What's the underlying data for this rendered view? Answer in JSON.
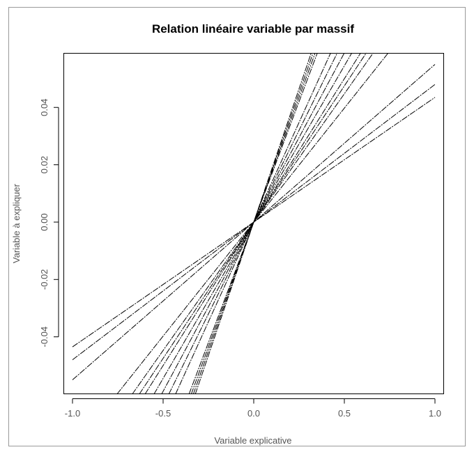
{
  "chart_data": {
    "type": "line",
    "title": "Relation linéaire variable par massif",
    "xlabel": "Variable explicative",
    "ylabel": "Variable à expliquer",
    "xlim": [
      -1.05,
      1.05
    ],
    "ylim": [
      -0.06,
      0.059
    ],
    "xticks": [
      -1.0,
      -0.5,
      0.0,
      0.5,
      1.0
    ],
    "xtick_labels": [
      "-1.0",
      "-0.5",
      "0.0",
      "0.5",
      "1.0"
    ],
    "yticks": [
      -0.04,
      -0.02,
      0.0,
      0.02,
      0.04
    ],
    "ytick_labels": [
      "-0.04",
      "-0.02",
      "0.00",
      "0.02",
      "0.04"
    ],
    "grid": false,
    "legend": false,
    "line_color": "#000000",
    "series": [
      {
        "intercept": 0,
        "slope": 0.0435
      },
      {
        "intercept": 0,
        "slope": 0.048
      },
      {
        "intercept": 0,
        "slope": 0.055
      },
      {
        "intercept": 0,
        "slope": 0.0795
      },
      {
        "intercept": 0,
        "slope": 0.0895
      },
      {
        "intercept": 0,
        "slope": 0.095
      },
      {
        "intercept": 0,
        "slope": 0.1
      },
      {
        "intercept": 0,
        "slope": 0.109
      },
      {
        "intercept": 0,
        "slope": 0.118
      },
      {
        "intercept": 0,
        "slope": 0.128
      },
      {
        "intercept": 0,
        "slope": 0.139
      },
      {
        "intercept": 0,
        "slope": 0.168
      },
      {
        "intercept": 0,
        "slope": 0.174
      },
      {
        "intercept": 0,
        "slope": 0.18
      },
      {
        "intercept": 0,
        "slope": 0.186
      }
    ]
  }
}
